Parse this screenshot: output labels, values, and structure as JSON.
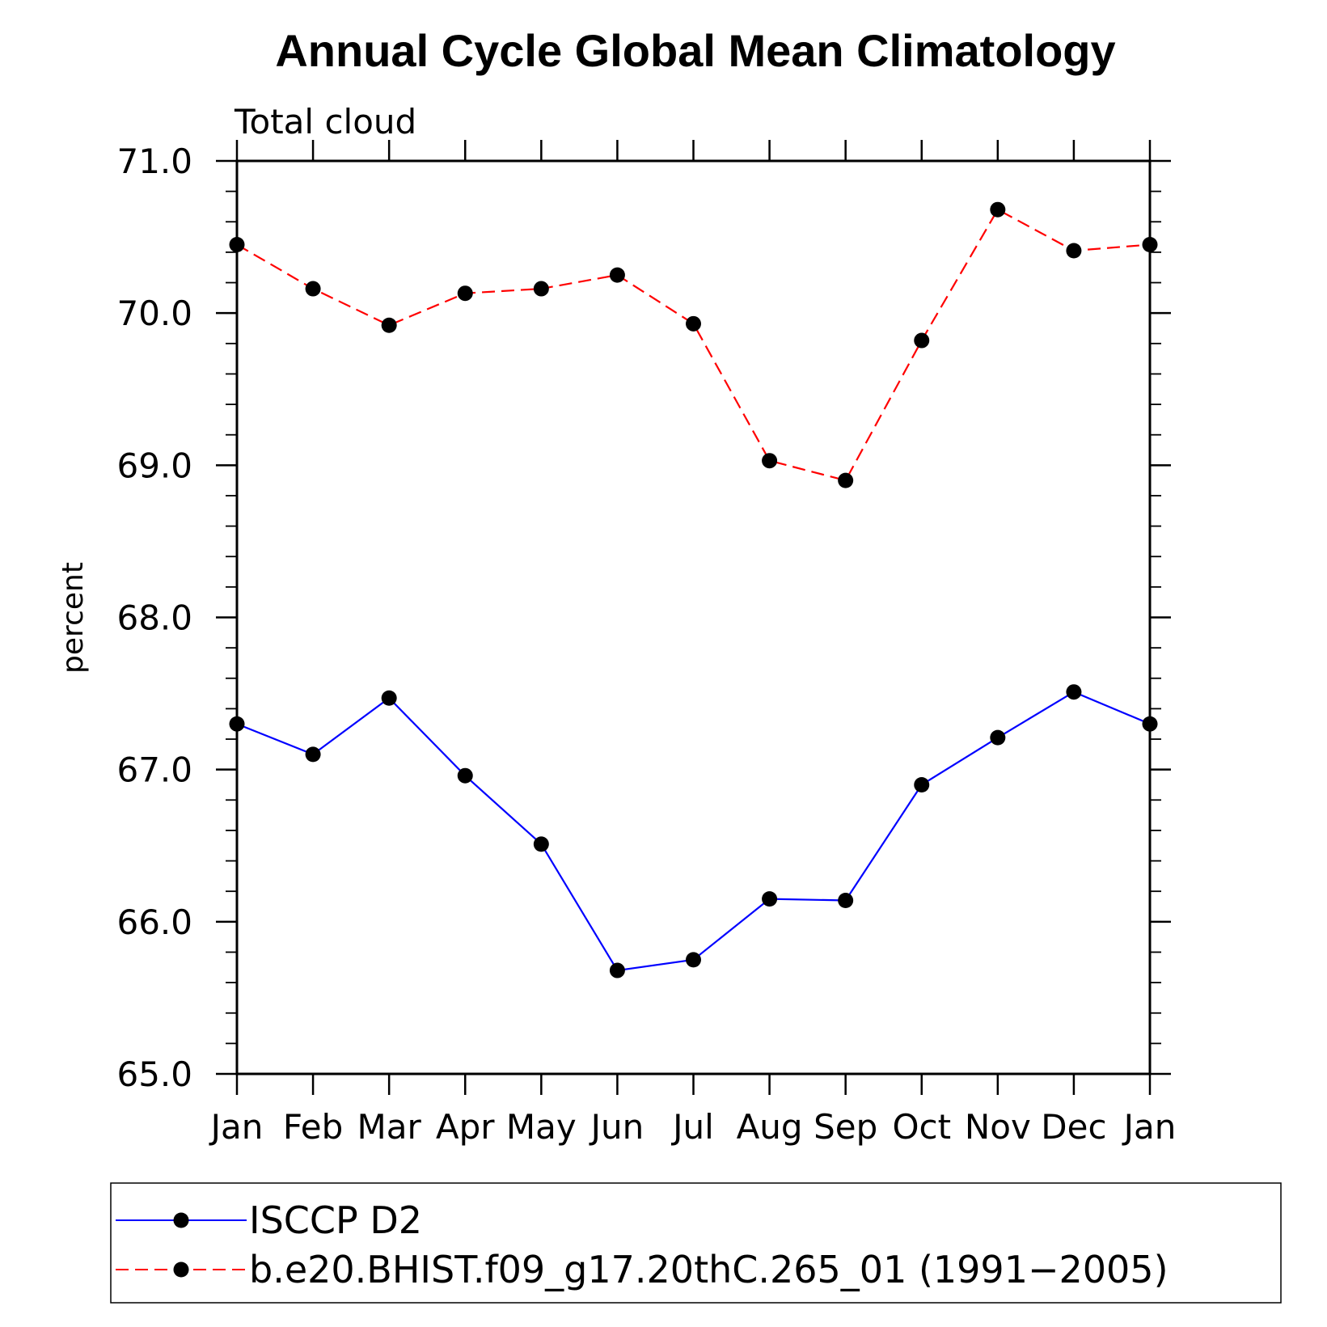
{
  "chart_data": {
    "type": "line",
    "title": "Annual Cycle Global Mean Climatology",
    "subtitle": "Total cloud",
    "xlabel": "",
    "ylabel": "percent",
    "categories": [
      "Jan",
      "Feb",
      "Mar",
      "Apr",
      "May",
      "Jun",
      "Jul",
      "Aug",
      "Sep",
      "Oct",
      "Nov",
      "Dec",
      "Jan"
    ],
    "ylim": [
      65.0,
      71.0
    ],
    "yticks": [
      "65.0",
      "66.0",
      "67.0",
      "68.0",
      "69.0",
      "70.0",
      "71.0"
    ],
    "grid": false,
    "legend_position": "bottom",
    "series": [
      {
        "name": "ISCCP D2",
        "color": "#0000ff",
        "dash": "solid",
        "marker": "circle",
        "values": [
          67.3,
          67.1,
          67.47,
          66.96,
          66.51,
          65.68,
          65.75,
          66.15,
          66.14,
          66.9,
          67.21,
          67.51,
          67.3
        ]
      },
      {
        "name": "b.e20.BHIST.f09_g17.20thC.265_01 (1991−2005)",
        "color": "#ff0000",
        "dash": "dashed",
        "marker": "circle",
        "values": [
          70.45,
          70.16,
          69.92,
          70.13,
          70.16,
          70.25,
          69.93,
          69.03,
          68.9,
          69.82,
          70.68,
          70.41,
          70.45
        ]
      }
    ]
  }
}
